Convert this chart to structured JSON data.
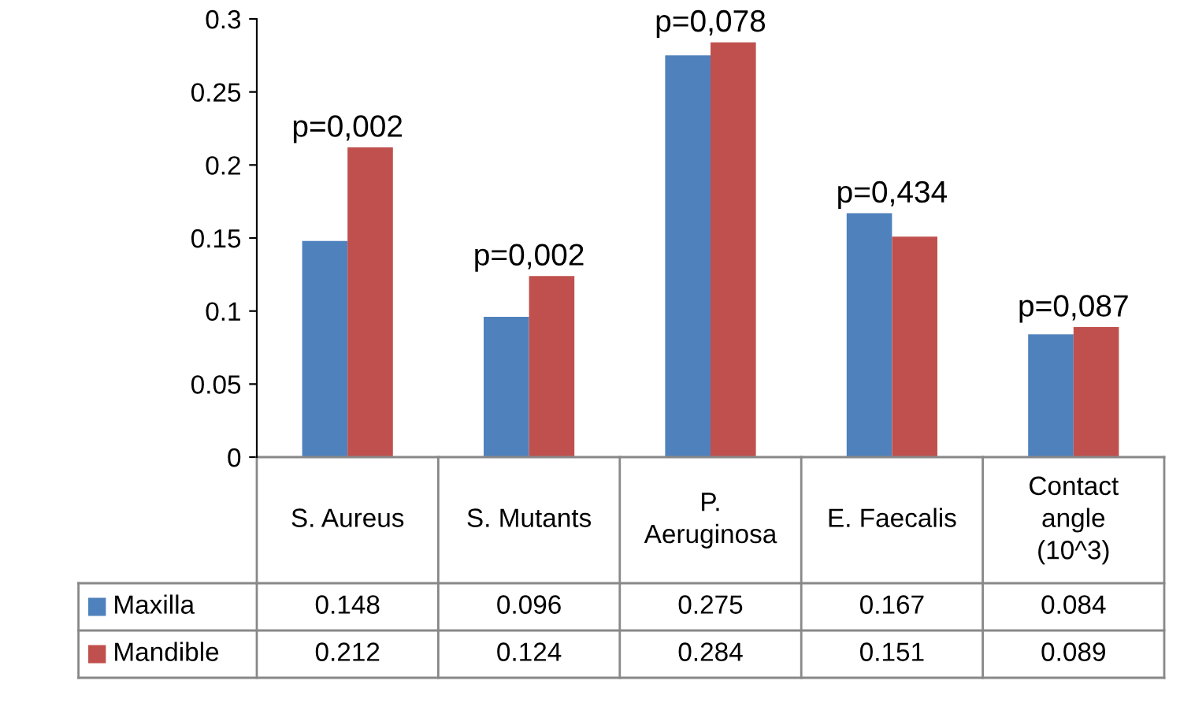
{
  "chart_data": {
    "type": "bar",
    "categories": [
      "S. Aureus",
      "S. Mutants",
      "P.\nAeruginosa",
      "E. Faecalis",
      "Contact\nangle\n(10^3)"
    ],
    "series": [
      {
        "name": "Maxilla",
        "color": "#4f81bd",
        "values": [
          0.148,
          0.096,
          0.275,
          0.167,
          0.084
        ]
      },
      {
        "name": "Mandible",
        "color": "#c0504d",
        "values": [
          0.212,
          0.124,
          0.284,
          0.151,
          0.089
        ]
      }
    ],
    "ylim": [
      0,
      0.3
    ],
    "yticks": [
      0,
      0.05,
      0.1,
      0.15,
      0.2,
      0.25,
      0.3
    ],
    "data_labels": true,
    "grid": false,
    "legend": "bottom left",
    "annotations": [
      {
        "text": "p=0,002",
        "x": "S. Aureus",
        "y": 0.212
      },
      {
        "text": "p=0,002",
        "x": "S. Mutants",
        "y": 0.124
      },
      {
        "text": "p=0,078",
        "x": "P.\nAeruginosa",
        "y": 0.284
      },
      {
        "text": "p=0,434",
        "x": "E. Faecalis",
        "y": 0.167
      },
      {
        "text": "p=0,087",
        "x": "Contact\nangle\n(10^3)",
        "y": 0.089
      }
    ]
  }
}
